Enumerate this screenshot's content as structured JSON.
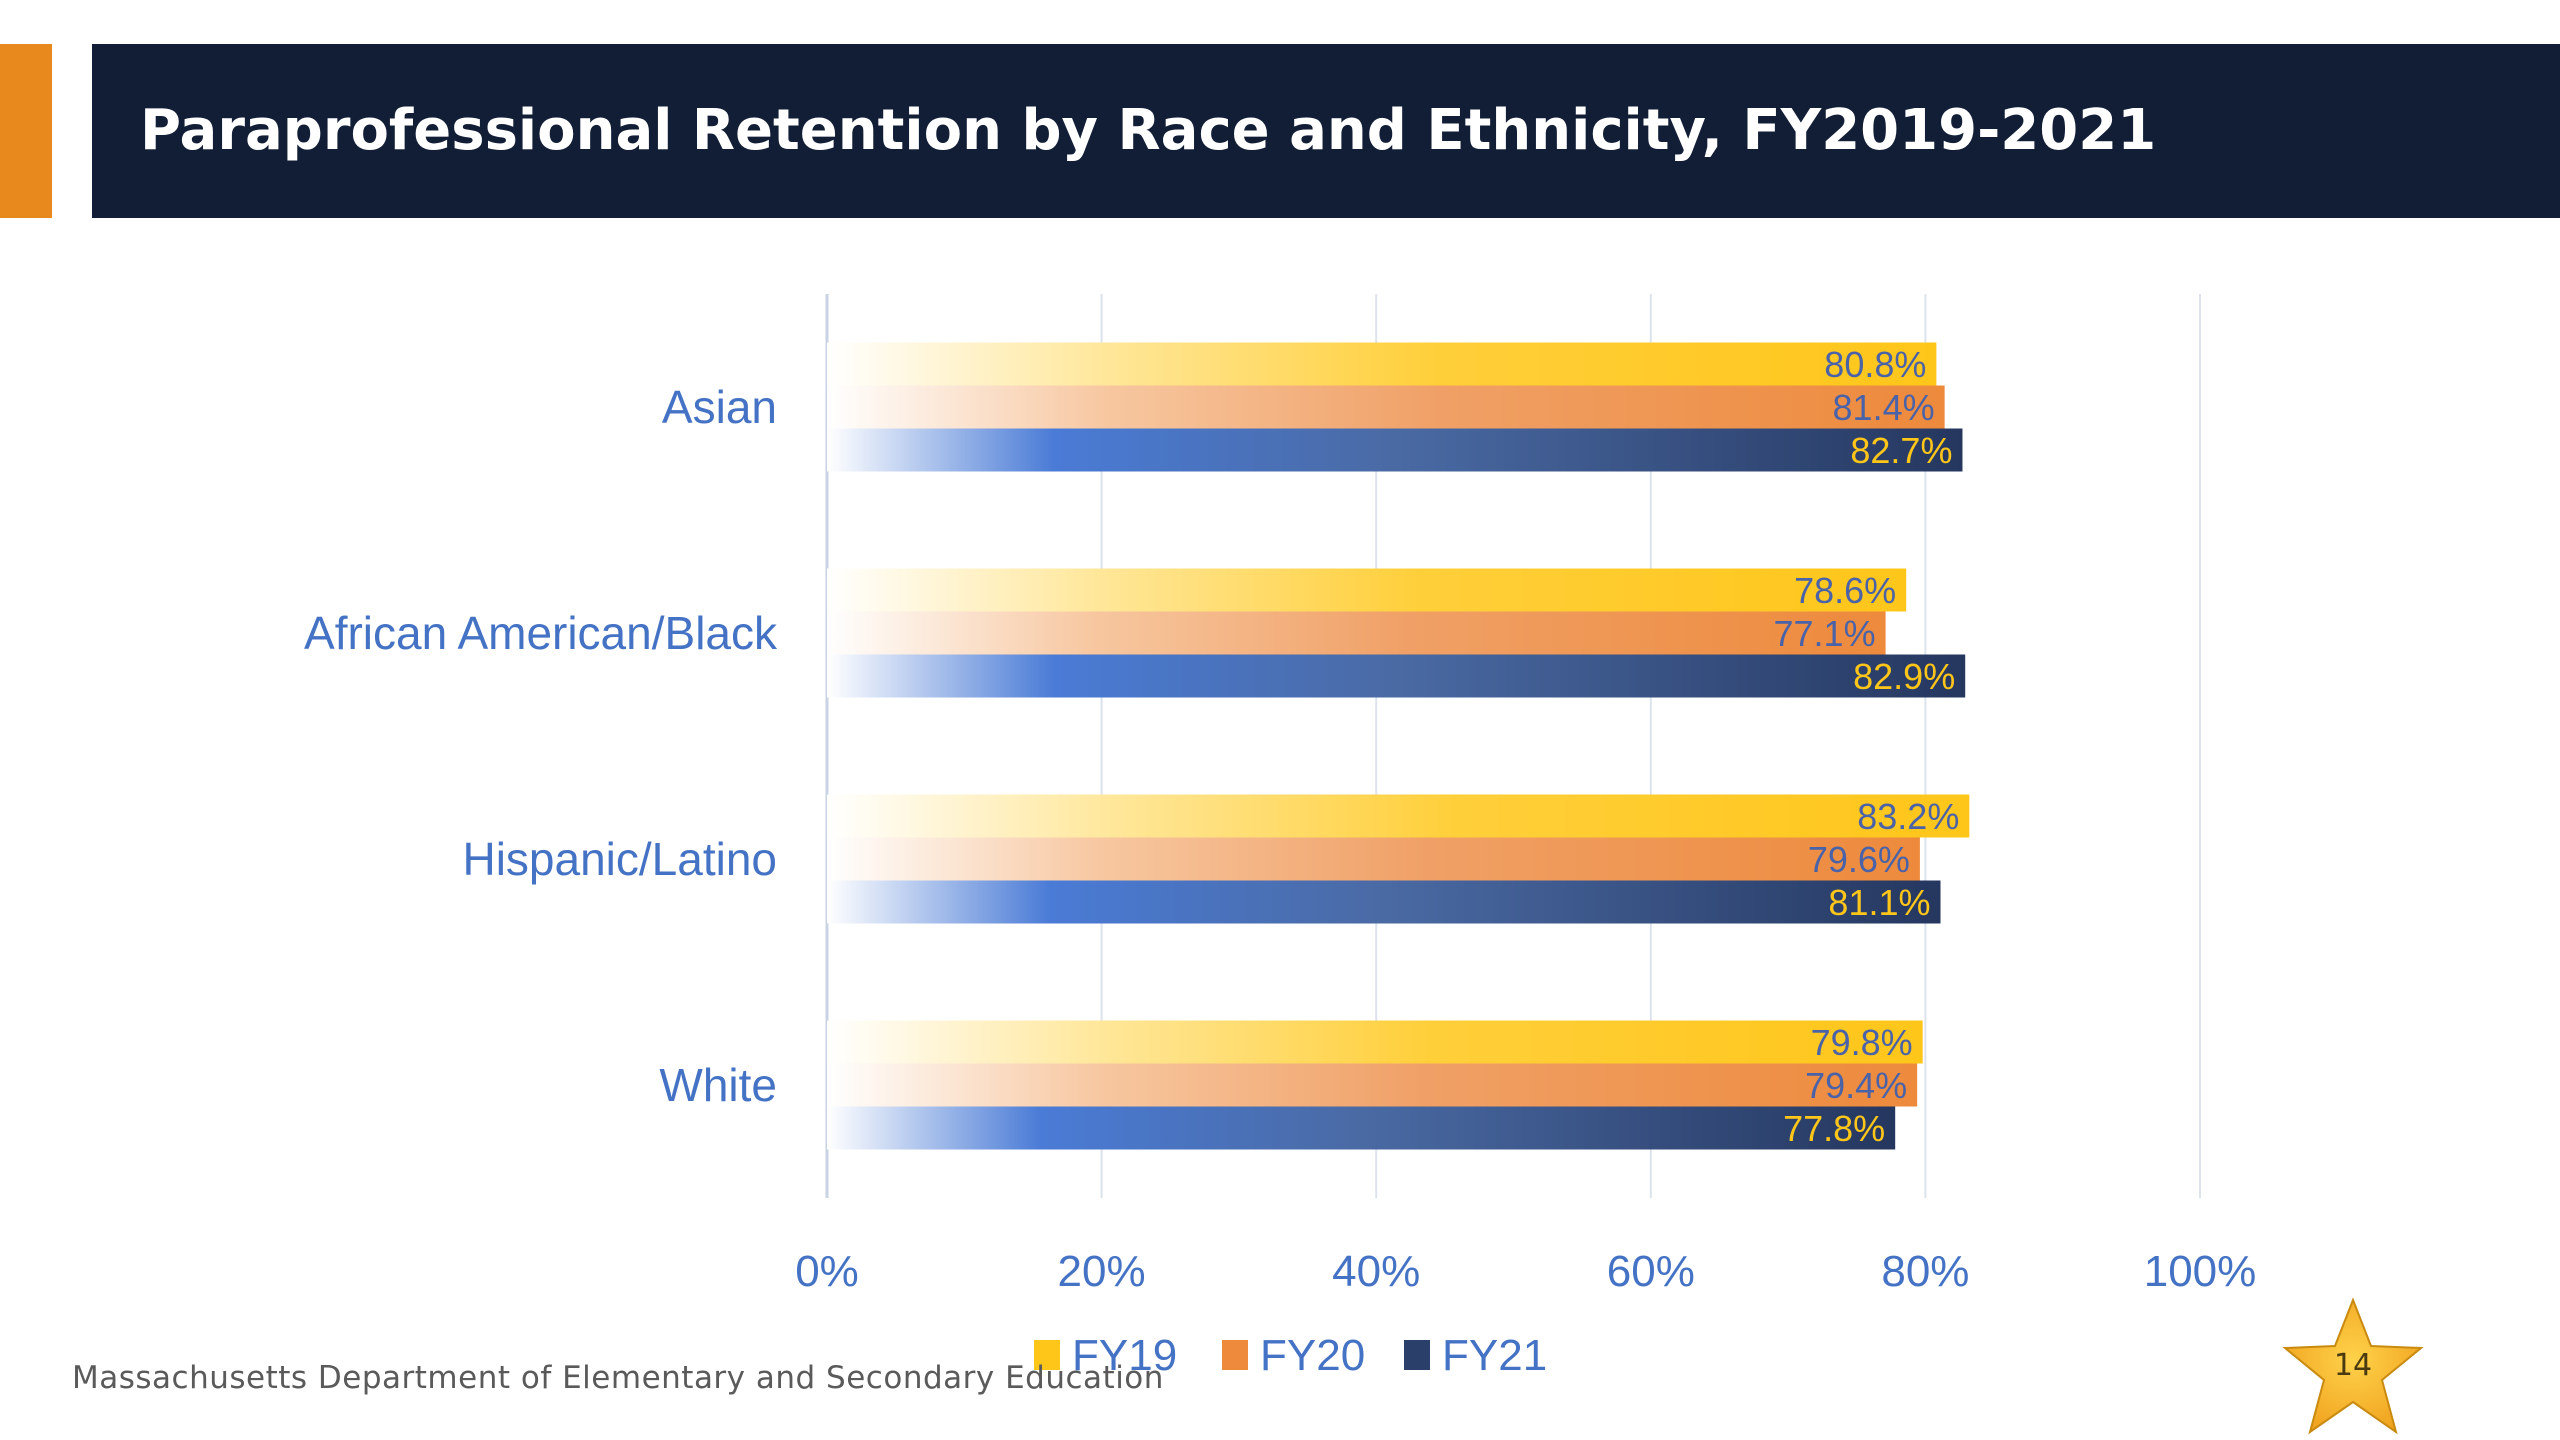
{
  "title": "Paraprofessional Retention by Race and Ethnicity, FY2019-2021",
  "footer": "Massachusetts Department of Elementary and Secondary Education",
  "page_number": "14",
  "colors": {
    "header_bg": "#121d36",
    "accent": "#e8891e",
    "label_blue": "#4472c4",
    "fy19": "#ffc61a",
    "fy20": "#ed8a3c",
    "fy21": "#2a3f6a",
    "fy21_highlight": "#4a7bd6"
  },
  "chart_data": {
    "type": "bar",
    "orientation": "horizontal",
    "categories": [
      "Asian",
      "African American/Black",
      "Hispanic/Latino",
      "White"
    ],
    "series": [
      {
        "name": "FY19",
        "values": [
          80.8,
          78.6,
          83.2,
          79.8
        ],
        "labels": [
          "80.8%",
          "78.6%",
          "83.2%",
          "79.8%"
        ]
      },
      {
        "name": "FY20",
        "values": [
          81.4,
          77.1,
          79.6,
          79.4
        ],
        "labels": [
          "81.4%",
          "77.1%",
          "79.6%",
          "79.4%"
        ]
      },
      {
        "name": "FY21",
        "values": [
          82.7,
          82.9,
          81.1,
          77.8
        ],
        "labels": [
          "82.7%",
          "82.9%",
          "81.1%",
          "77.8%"
        ]
      }
    ],
    "xlim": [
      0,
      100
    ],
    "x_ticks": [
      "0%",
      "20%",
      "40%",
      "60%",
      "80%",
      "100%"
    ],
    "grid": true,
    "legend_position": "bottom"
  }
}
